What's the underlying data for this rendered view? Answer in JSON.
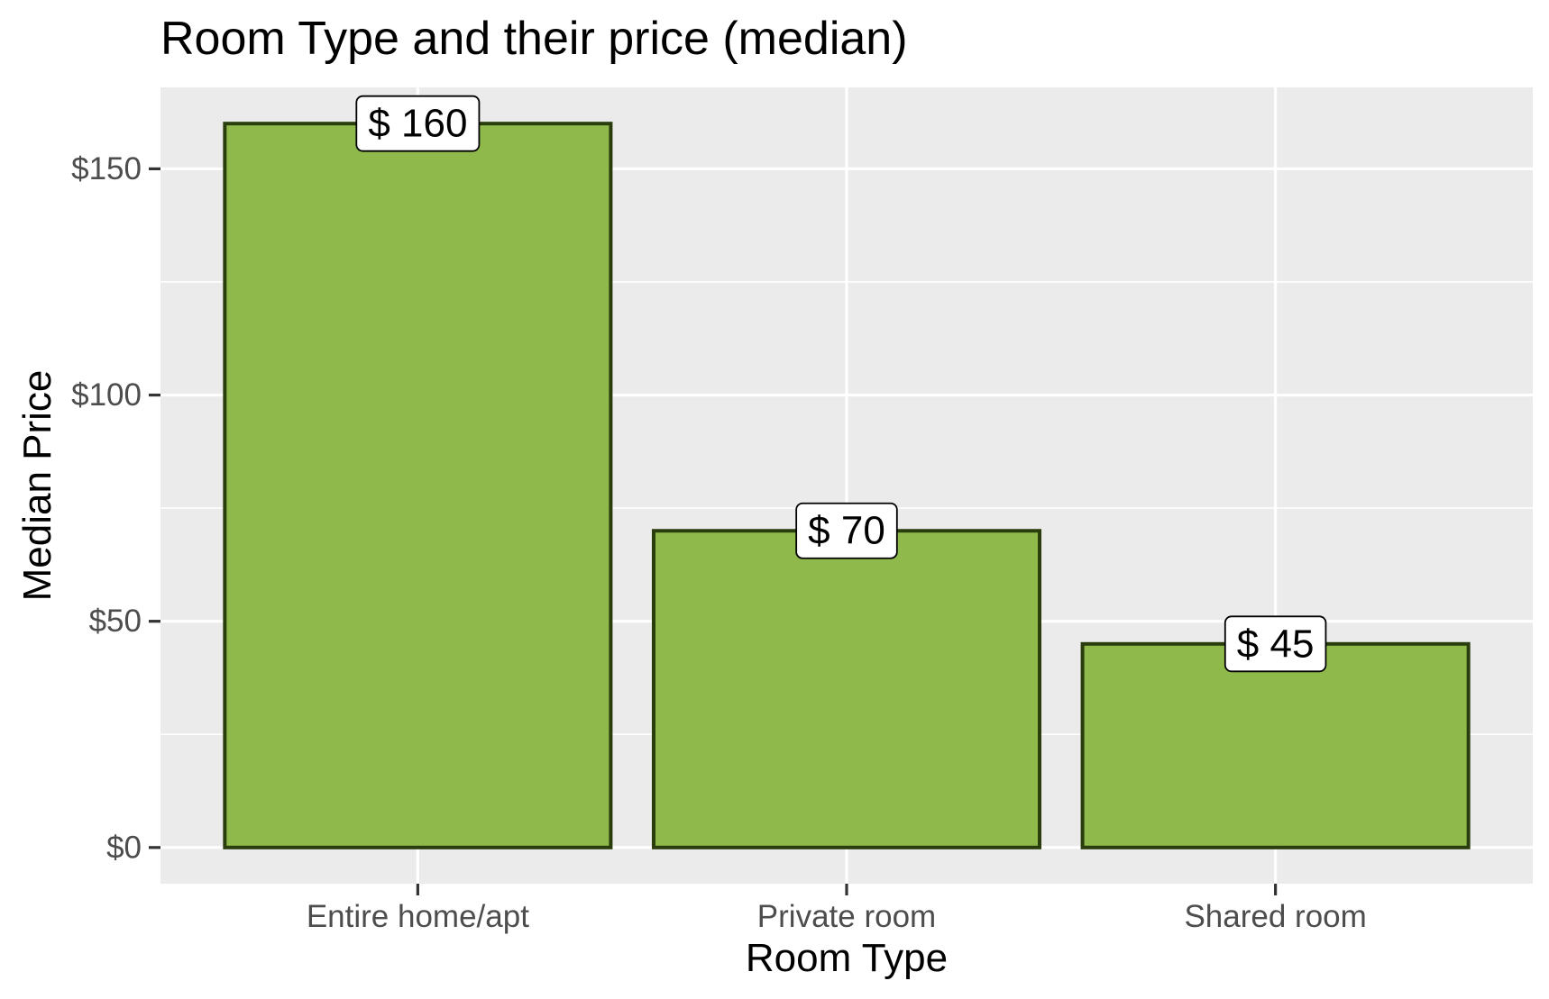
{
  "chart_data": {
    "type": "bar",
    "title": "Room Type and their price (median)",
    "xlabel": "Room Type",
    "ylabel": "Median Price",
    "categories": [
      "Entire home/apt",
      "Private room",
      "Shared room"
    ],
    "values": [
      160,
      70,
      45
    ],
    "data_labels": [
      "$ 160",
      "$ 70",
      "$ 45"
    ],
    "ylim": [
      -8,
      168
    ],
    "yticks": [
      0,
      50,
      100,
      150
    ],
    "ytick_labels": [
      "$0",
      "$50",
      "$100",
      "$150"
    ],
    "y_minor_gridlines": [
      25,
      75,
      125
    ],
    "grid": true,
    "legend": "none",
    "colors": {
      "bar_fill": "#8fba4b",
      "bar_stroke": "#2a3d0d",
      "panel_background": "#ebebeb",
      "gridline": "#ffffff"
    }
  }
}
